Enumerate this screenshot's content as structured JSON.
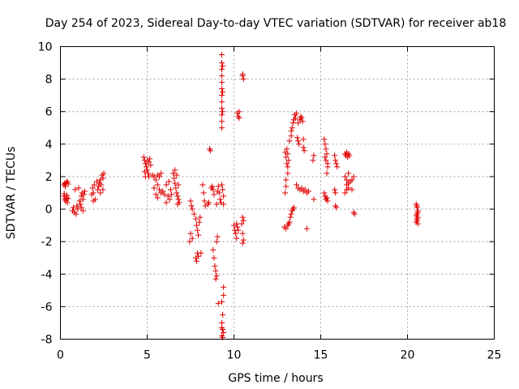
{
  "chart_data": {
    "type": "scatter",
    "title": "Day 254 of 2023, Sidereal Day-to-day VTEC variation (SDTVAR) for receiver ab18",
    "xlabel": "GPS time / hours",
    "ylabel": "SDTVAR / TECUs",
    "xlim": [
      0,
      25
    ],
    "ylim": [
      -8,
      10
    ],
    "xticks": [
      0,
      5,
      10,
      15,
      20,
      25
    ],
    "yticks": [
      -8,
      -6,
      -4,
      -2,
      0,
      2,
      4,
      6,
      8,
      10
    ],
    "grid": true,
    "marker": "+",
    "color": "#e00000",
    "series": [
      {
        "name": "SDTVAR",
        "points": [
          [
            0.2,
            1.5
          ],
          [
            0.25,
            1.6
          ],
          [
            0.3,
            1.55
          ],
          [
            0.35,
            1.65
          ],
          [
            0.4,
            1.7
          ],
          [
            0.28,
            1.4
          ],
          [
            0.45,
            1.55
          ],
          [
            0.2,
            0.8
          ],
          [
            0.25,
            0.6
          ],
          [
            0.3,
            0.5
          ],
          [
            0.35,
            0.7
          ],
          [
            0.4,
            0.4
          ],
          [
            0.45,
            0.65
          ],
          [
            0.22,
            0.95
          ],
          [
            0.38,
            0.85
          ],
          [
            0.7,
            -0.1
          ],
          [
            0.75,
            0.1
          ],
          [
            0.8,
            -0.2
          ],
          [
            0.85,
            1.2
          ],
          [
            0.9,
            -0.3
          ],
          [
            0.95,
            0.2
          ],
          [
            1.0,
            0.0
          ],
          [
            1.05,
            1.3
          ],
          [
            1.1,
            0.5
          ],
          [
            1.15,
            0.3
          ],
          [
            1.2,
            0.8
          ],
          [
            1.25,
            1.0
          ],
          [
            1.3,
            0.6
          ],
          [
            1.35,
            0.9
          ],
          [
            1.4,
            1.1
          ],
          [
            1.2,
            0.1
          ],
          [
            1.3,
            -0.1
          ],
          [
            1.8,
            0.9
          ],
          [
            1.9,
            1.0
          ],
          [
            1.85,
            1.3
          ],
          [
            1.95,
            1.5
          ],
          [
            2.0,
            0.6
          ],
          [
            2.1,
            1.7
          ],
          [
            1.9,
            0.5
          ],
          [
            2.15,
            1.2
          ],
          [
            2.2,
            1.4
          ],
          [
            2.25,
            1.6
          ],
          [
            2.3,
            1.8
          ],
          [
            2.35,
            1.5
          ],
          [
            2.4,
            2.1
          ],
          [
            2.45,
            1.9
          ],
          [
            2.5,
            2.2
          ],
          [
            2.3,
            1.0
          ],
          [
            2.45,
            1.2
          ],
          [
            4.8,
            3.2
          ],
          [
            4.85,
            3.0
          ],
          [
            4.9,
            2.8
          ],
          [
            4.95,
            2.6
          ],
          [
            5.0,
            2.4
          ],
          [
            5.05,
            2.2
          ],
          [
            5.1,
            2.0
          ],
          [
            5.15,
            3.1
          ],
          [
            4.9,
            2.0
          ],
          [
            5.0,
            3.0
          ],
          [
            5.1,
            2.9
          ],
          [
            5.2,
            2.7
          ],
          [
            4.85,
            2.3
          ],
          [
            5.3,
            2.1
          ],
          [
            5.4,
            2.0
          ],
          [
            5.5,
            1.8
          ],
          [
            5.6,
            1.5
          ],
          [
            5.7,
            1.2
          ],
          [
            5.8,
            1.0
          ],
          [
            5.5,
            0.9
          ],
          [
            5.6,
            0.7
          ],
          [
            5.4,
            1.3
          ],
          [
            5.7,
            2.0
          ],
          [
            5.8,
            2.2
          ],
          [
            5.6,
            2.1
          ],
          [
            5.9,
            1.1
          ],
          [
            6.0,
            0.9
          ],
          [
            6.1,
            1.5
          ],
          [
            6.2,
            0.8
          ],
          [
            6.3,
            0.6
          ],
          [
            6.1,
            0.4
          ],
          [
            6.25,
            1.7
          ],
          [
            6.35,
            1.2
          ],
          [
            6.4,
            0.9
          ],
          [
            6.5,
            2.2
          ],
          [
            6.55,
            1.9
          ],
          [
            6.6,
            1.6
          ],
          [
            6.65,
            1.3
          ],
          [
            6.7,
            1.0
          ],
          [
            6.75,
            0.8
          ],
          [
            6.8,
            0.6
          ],
          [
            6.85,
            0.4
          ],
          [
            6.6,
            2.4
          ],
          [
            6.7,
            2.1
          ],
          [
            6.8,
            1.5
          ],
          [
            6.75,
            0.3
          ],
          [
            7.5,
            0.5
          ],
          [
            7.55,
            0.2
          ],
          [
            7.6,
            0.0
          ],
          [
            7.7,
            -0.3
          ],
          [
            7.8,
            -0.6
          ],
          [
            7.85,
            -1.0
          ],
          [
            7.9,
            -1.3
          ],
          [
            7.95,
            -1.6
          ],
          [
            7.6,
            -1.8
          ],
          [
            7.5,
            -1.5
          ],
          [
            7.45,
            -2.0
          ],
          [
            7.9,
            -2.7
          ],
          [
            7.8,
            -3.0
          ],
          [
            7.85,
            -3.2
          ],
          [
            7.95,
            -2.9
          ],
          [
            8.1,
            -2.7
          ],
          [
            8.0,
            -0.8
          ],
          [
            8.05,
            -0.5
          ],
          [
            8.2,
            1.5
          ],
          [
            8.25,
            1.0
          ],
          [
            8.3,
            0.5
          ],
          [
            8.35,
            0.2
          ],
          [
            8.5,
            0.3
          ],
          [
            8.55,
            0.4
          ],
          [
            8.6,
            3.7
          ],
          [
            8.65,
            3.6
          ],
          [
            8.7,
            1.3
          ],
          [
            8.75,
            1.4
          ],
          [
            8.8,
            1.2
          ],
          [
            8.85,
            0.9
          ],
          [
            8.8,
            -2.5
          ],
          [
            8.85,
            -3.0
          ],
          [
            8.9,
            -3.5
          ],
          [
            8.95,
            -3.8
          ],
          [
            9.0,
            -4.1
          ],
          [
            9.0,
            -2.0
          ],
          [
            9.05,
            -1.7
          ],
          [
            8.95,
            -4.3
          ],
          [
            9.0,
            0.3
          ],
          [
            9.05,
            1.1
          ],
          [
            9.1,
            1.4
          ],
          [
            9.15,
            1.0
          ],
          [
            9.2,
            0.6
          ],
          [
            9.25,
            0.4
          ],
          [
            9.3,
            9.5
          ],
          [
            9.3,
            9.0
          ],
          [
            9.3,
            8.6
          ],
          [
            9.3,
            8.2
          ],
          [
            9.3,
            7.8
          ],
          [
            9.3,
            7.4
          ],
          [
            9.3,
            7.0
          ],
          [
            9.3,
            6.6
          ],
          [
            9.3,
            6.2
          ],
          [
            9.3,
            5.8
          ],
          [
            9.3,
            5.4
          ],
          [
            9.3,
            5.0
          ],
          [
            9.35,
            8.8
          ],
          [
            9.35,
            7.2
          ],
          [
            9.35,
            6.0
          ],
          [
            9.3,
            1.5
          ],
          [
            9.35,
            1.2
          ],
          [
            9.4,
            0.8
          ],
          [
            9.4,
            0.3
          ],
          [
            9.1,
            -5.8
          ],
          [
            9.3,
            -5.7
          ],
          [
            9.35,
            -6.5
          ],
          [
            9.4,
            -4.8
          ],
          [
            9.4,
            -5.3
          ],
          [
            9.3,
            -7.0
          ],
          [
            9.35,
            -7.4
          ],
          [
            9.3,
            -7.8
          ],
          [
            9.35,
            -7.9
          ],
          [
            9.4,
            -7.6
          ],
          [
            9.3,
            -7.3
          ],
          [
            10.0,
            -1.0
          ],
          [
            10.05,
            -1.3
          ],
          [
            10.1,
            -1.5
          ],
          [
            10.15,
            -1.8
          ],
          [
            10.2,
            -1.1
          ],
          [
            10.25,
            -1.3
          ],
          [
            10.15,
            -0.9
          ],
          [
            10.2,
            5.9
          ],
          [
            10.25,
            5.7
          ],
          [
            10.3,
            6.0
          ],
          [
            10.3,
            5.6
          ],
          [
            10.5,
            8.2
          ],
          [
            10.55,
            8.0
          ],
          [
            10.5,
            8.3
          ],
          [
            10.5,
            -0.5
          ],
          [
            10.55,
            -0.7
          ],
          [
            10.5,
            -1.5
          ],
          [
            10.55,
            -1.9
          ],
          [
            10.5,
            -2.1
          ],
          [
            10.45,
            -0.9
          ],
          [
            12.9,
            -1.1
          ],
          [
            13.0,
            -1.2
          ],
          [
            13.1,
            -1.0
          ],
          [
            13.15,
            -0.9
          ],
          [
            12.95,
            3.5
          ],
          [
            13.0,
            3.2
          ],
          [
            13.05,
            2.8
          ],
          [
            13.1,
            2.2
          ],
          [
            13.0,
            1.8
          ],
          [
            13.0,
            1.4
          ],
          [
            12.95,
            1.0
          ],
          [
            13.05,
            3.7
          ],
          [
            13.1,
            3.4
          ],
          [
            13.15,
            3.0
          ],
          [
            13.1,
            2.6
          ],
          [
            13.2,
            -0.8
          ],
          [
            13.25,
            -0.5
          ],
          [
            13.3,
            -0.3
          ],
          [
            13.35,
            -0.1
          ],
          [
            13.4,
            0.0
          ],
          [
            13.45,
            0.1
          ],
          [
            13.2,
            4.2
          ],
          [
            13.3,
            4.5
          ],
          [
            13.35,
            5.0
          ],
          [
            13.4,
            5.3
          ],
          [
            13.45,
            5.5
          ],
          [
            13.5,
            5.8
          ],
          [
            13.55,
            5.6
          ],
          [
            13.6,
            5.9
          ],
          [
            13.3,
            4.8
          ],
          [
            13.65,
            4.4
          ],
          [
            13.7,
            4.2
          ],
          [
            13.75,
            4.0
          ],
          [
            13.7,
            5.3
          ],
          [
            13.8,
            5.5
          ],
          [
            13.85,
            5.7
          ],
          [
            13.9,
            5.6
          ],
          [
            13.95,
            5.4
          ],
          [
            14.0,
            3.8
          ],
          [
            14.05,
            3.6
          ],
          [
            14.0,
            4.3
          ],
          [
            13.6,
            1.5
          ],
          [
            13.7,
            1.3
          ],
          [
            13.8,
            1.2
          ],
          [
            13.9,
            1.3
          ],
          [
            14.0,
            1.1
          ],
          [
            14.1,
            1.2
          ],
          [
            14.2,
            1.0
          ],
          [
            14.3,
            1.1
          ],
          [
            14.2,
            -1.2
          ],
          [
            14.6,
            3.3
          ],
          [
            14.55,
            3.0
          ],
          [
            14.6,
            0.6
          ],
          [
            15.2,
            1.0
          ],
          [
            15.25,
            0.8
          ],
          [
            15.3,
            0.6
          ],
          [
            15.35,
            0.7
          ],
          [
            15.4,
            0.5
          ],
          [
            15.2,
            4.3
          ],
          [
            15.25,
            4.0
          ],
          [
            15.3,
            3.7
          ],
          [
            15.35,
            3.4
          ],
          [
            15.3,
            3.0
          ],
          [
            15.4,
            2.6
          ],
          [
            15.35,
            2.2
          ],
          [
            15.4,
            2.8
          ],
          [
            15.25,
            3.2
          ],
          [
            15.8,
            3.3
          ],
          [
            15.85,
            3.0
          ],
          [
            15.9,
            2.8
          ],
          [
            15.95,
            2.6
          ],
          [
            15.8,
            1.2
          ],
          [
            15.85,
            1.0
          ],
          [
            15.85,
            0.2
          ],
          [
            15.9,
            0.1
          ],
          [
            16.4,
            3.4
          ],
          [
            16.45,
            3.3
          ],
          [
            16.5,
            3.5
          ],
          [
            16.55,
            3.2
          ],
          [
            16.6,
            3.4
          ],
          [
            16.65,
            3.3
          ],
          [
            16.4,
            2.0
          ],
          [
            16.5,
            1.8
          ],
          [
            16.6,
            1.6
          ],
          [
            16.5,
            1.5
          ],
          [
            16.7,
            1.7
          ],
          [
            16.8,
            1.8
          ],
          [
            16.9,
            2.0
          ],
          [
            16.6,
            1.3
          ],
          [
            16.4,
            1.0
          ],
          [
            16.5,
            1.2
          ],
          [
            16.8,
            1.2
          ],
          [
            16.6,
            2.2
          ],
          [
            16.9,
            -0.2
          ],
          [
            16.95,
            -0.3
          ],
          [
            20.5,
            0.3
          ],
          [
            20.55,
            0.1
          ],
          [
            20.6,
            -0.1
          ],
          [
            20.55,
            -0.3
          ],
          [
            20.6,
            -0.5
          ],
          [
            20.55,
            -0.7
          ],
          [
            20.6,
            -0.9
          ],
          [
            20.5,
            -0.8
          ],
          [
            20.55,
            0.2
          ],
          [
            20.6,
            -0.2
          ],
          [
            20.5,
            -0.4
          ],
          [
            20.55,
            -0.6
          ]
        ]
      }
    ]
  }
}
